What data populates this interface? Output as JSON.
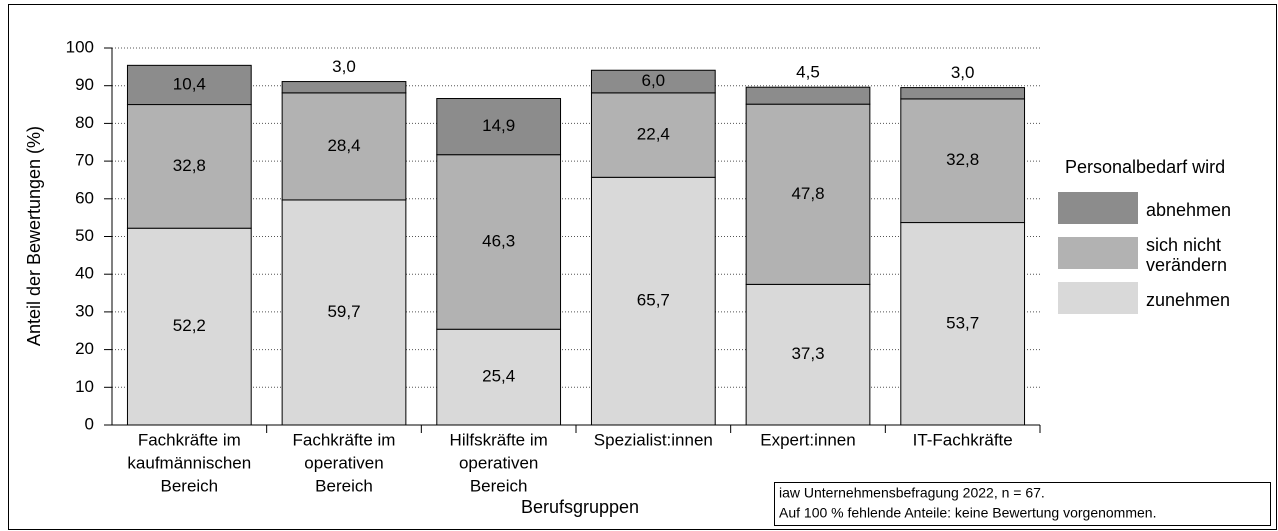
{
  "chart_data": {
    "type": "stacked_bar",
    "ylabel": "Anteil der Bewertungen (%)",
    "xlabel": "Berufsgruppen",
    "categories": [
      [
        "Fachkräfte im",
        "kaufmännischen",
        "Bereich"
      ],
      [
        "Fachkräfte im",
        "operativen",
        "Bereich"
      ],
      [
        "Hilfskräfte im",
        "operativen",
        "Bereich"
      ],
      [
        "Spezialist:innen"
      ],
      [
        "Expert:innen"
      ],
      [
        "IT-Fachkräfte"
      ]
    ],
    "series": [
      {
        "name": "zunehmen",
        "color": "#d9d9d9",
        "values": [
          52.2,
          59.7,
          25.4,
          65.7,
          37.3,
          53.7
        ],
        "value_labels": [
          "52,2",
          "59,7",
          "25,4",
          "65,7",
          "37,3",
          "53,7"
        ]
      },
      {
        "name": "sich nicht verändern",
        "color": "#b2b2b2",
        "values": [
          32.8,
          28.4,
          46.3,
          22.4,
          47.8,
          32.8
        ],
        "value_labels": [
          "32,8",
          "28,4",
          "46,3",
          "22,4",
          "47,8",
          "32,8"
        ]
      },
      {
        "name": "abnehmen",
        "color": "#8c8c8c",
        "values": [
          10.4,
          3.0,
          14.9,
          6.0,
          4.5,
          3.0
        ],
        "value_labels": [
          "10,4",
          "3,0",
          "14,9",
          "6,0",
          "4,5",
          "3,0"
        ]
      }
    ],
    "legend_title": "Personalbedarf wird",
    "legend_position": "right",
    "notes": [
      "iaw Unternehmensbefragung 2022, n = 67.",
      "Auf 100 % fehlende Anteile: keine Bewertung vorgenommen."
    ],
    "ylim": [
      0,
      100
    ],
    "yticks": [
      0,
      10,
      20,
      30,
      40,
      50,
      60,
      70,
      80,
      90,
      100
    ],
    "grid": true
  }
}
